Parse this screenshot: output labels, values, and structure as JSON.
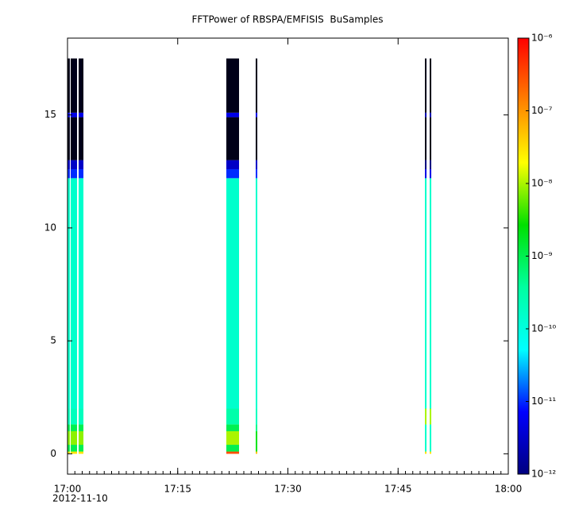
{
  "chart_data": {
    "type": "spectrogram",
    "title": "FFTPower of RBSPA/EMFISIS  BuSamples",
    "date_label": "2012-11-10",
    "xlim": [
      "17:00:00",
      "18:00:00"
    ],
    "xticks": [
      {
        "value": "17:00:00",
        "label": "17:00"
      },
      {
        "value": "17:15:00",
        "label": "17:15"
      },
      {
        "value": "17:30:00",
        "label": "17:30"
      },
      {
        "value": "17:45:00",
        "label": "17:45"
      },
      {
        "value": "18:00:00",
        "label": "18:00"
      }
    ],
    "ylim": [
      -0.9,
      18.4
    ],
    "yticks": [
      0,
      5,
      10,
      15
    ],
    "frequency_bins": [
      0,
      0.1,
      0.4,
      1.0,
      1.3,
      2.0,
      12.2,
      12.6,
      13.0,
      14.9,
      15.1,
      17.5
    ],
    "segments": [
      {
        "start": "17:00:00",
        "end": "17:00:19",
        "values": [
          3e-08,
          1e-09,
          8e-09,
          1e-09,
          2e-10,
          1.5e-10,
          1e-11,
          3e-12,
          6e-13,
          5e-12,
          6e-13
        ]
      },
      {
        "start": "17:00:26",
        "end": "17:01:18",
        "values": [
          3e-08,
          1e-09,
          8e-09,
          1e-09,
          2e-10,
          1.5e-10,
          1e-11,
          3e-12,
          6e-13,
          5e-12,
          6e-13
        ]
      },
      {
        "start": "17:01:31",
        "end": "17:02:10",
        "values": [
          3e-08,
          1e-09,
          8e-09,
          1e-09,
          2e-10,
          1.5e-10,
          1e-11,
          3e-12,
          6e-13,
          5e-12,
          6e-13
        ]
      },
      {
        "start": "17:21:37",
        "end": "17:23:21",
        "values": [
          3e-07,
          1e-09,
          1e-08,
          1e-09,
          3e-10,
          1.5e-10,
          1e-11,
          3e-12,
          6e-13,
          5e-12,
          6e-13
        ]
      },
      {
        "start": "17:25:37",
        "end": "17:25:50",
        "values": [
          5e-08,
          2e-09,
          2e-09,
          5e-10,
          2e-10,
          1.5e-10,
          1e-11,
          3e-12,
          6e-13,
          5e-12,
          6e-13
        ]
      },
      {
        "start": "17:48:39",
        "end": "17:48:52",
        "values": [
          3e-08,
          1.5e-10,
          1.5e-10,
          1.5e-10,
          1e-08,
          1.5e-10,
          5e-12,
          1e-12,
          6e-13,
          2e-12,
          6e-13
        ]
      },
      {
        "start": "17:49:18",
        "end": "17:49:31",
        "values": [
          3e-08,
          1.5e-10,
          1.5e-10,
          1.5e-10,
          1e-08,
          1.5e-10,
          5e-12,
          1e-12,
          6e-13,
          2e-12,
          6e-13
        ]
      }
    ],
    "zlim": [
      1e-12,
      1e-06
    ],
    "zlog": true,
    "zticks": [
      {
        "value": 1e-12,
        "label": "10⁻¹²"
      },
      {
        "value": 1e-11,
        "label": "10⁻¹¹"
      },
      {
        "value": 1e-10,
        "label": "10⁻¹⁰"
      },
      {
        "value": 1e-09,
        "label": "10⁻⁹"
      },
      {
        "value": 1e-08,
        "label": "10⁻⁸"
      },
      {
        "value": 1e-07,
        "label": "10⁻⁷"
      },
      {
        "value": 1e-06,
        "label": "10⁻⁶"
      }
    ],
    "colormap": [
      "#00007f",
      "#0000ff",
      "#00ffff",
      "#00ffa0",
      "#00e000",
      "#ffff00",
      "#ff8000",
      "#ff0000"
    ],
    "below_color": "#000018"
  }
}
